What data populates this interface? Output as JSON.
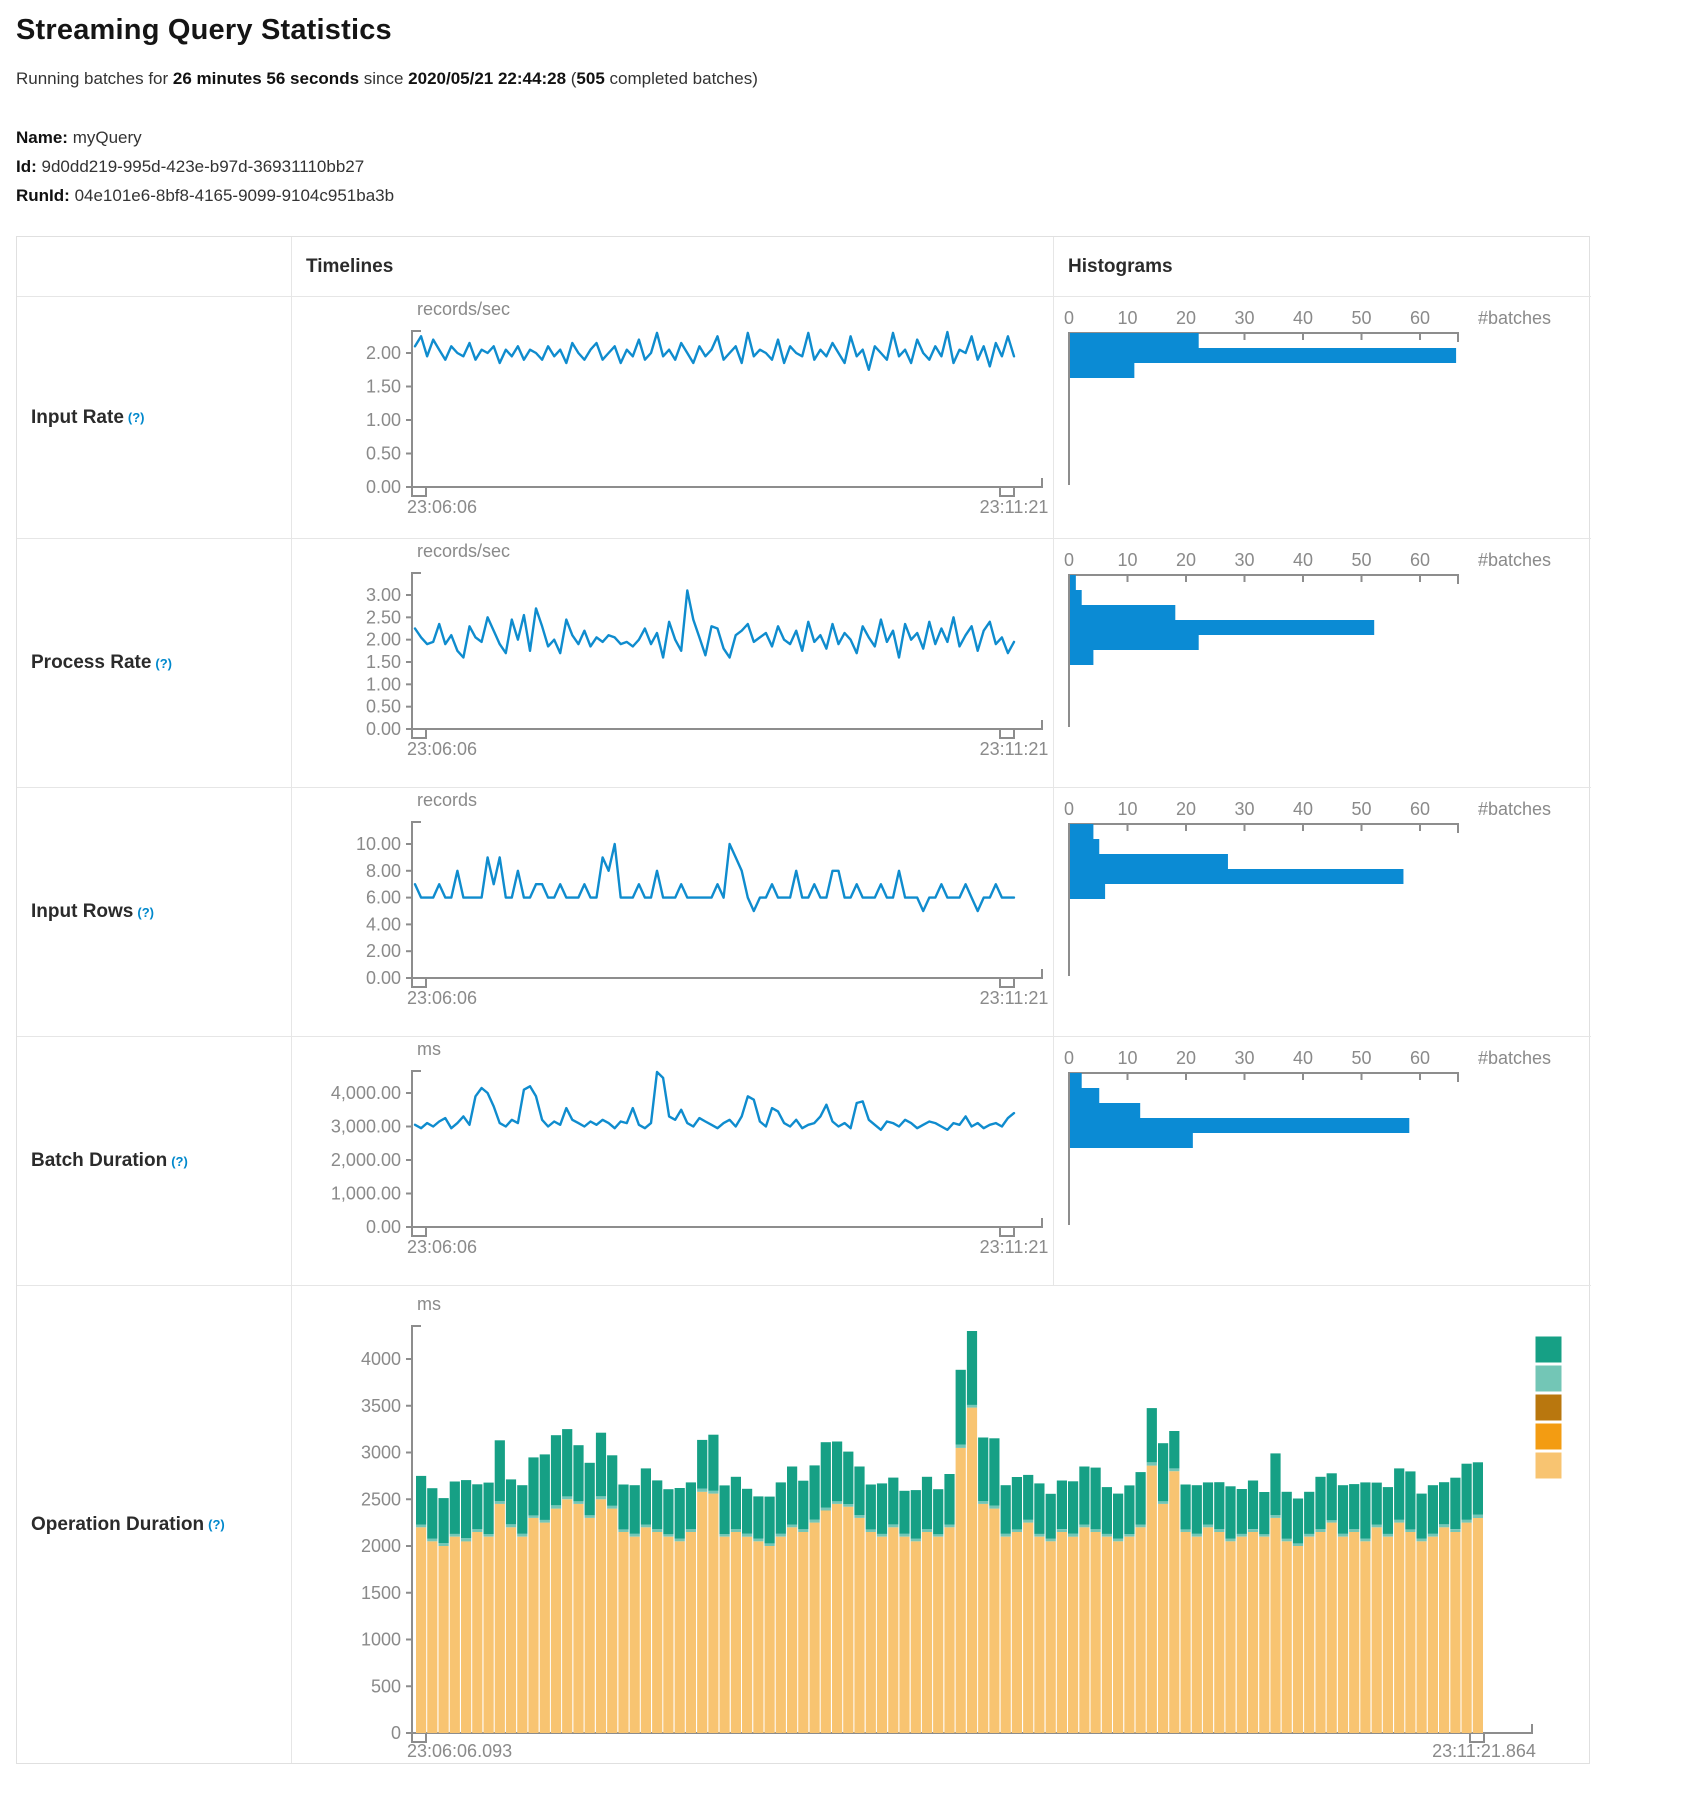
{
  "page": {
    "title": "Streaming Query Statistics",
    "subtitle": {
      "prefix": "Running batches for ",
      "duration": "26 minutes 56 seconds",
      "mid": " since ",
      "start_time": "2020/05/21 22:44:28",
      "paren_open": " (",
      "completed_batches": "505",
      "suffix": " completed batches)"
    },
    "meta": {
      "name_label": "Name:",
      "name_value": "myQuery",
      "id_label": "Id:",
      "id_value": "9d0dd219-995d-423e-b97d-36931110bb27",
      "runid_label": "RunId:",
      "runid_value": "04e101e6-8bf8-4165-9099-9104c951ba3b"
    }
  },
  "table": {
    "col_headers": [
      "Timelines",
      "Histograms"
    ],
    "help_mark": "(?)",
    "row_labels": [
      "Input Rate",
      "Process Rate",
      "Input Rows",
      "Batch Duration",
      "Operation Duration"
    ]
  },
  "colors": {
    "line_blue": "#0f8cce",
    "hist_blue": "#0b8bd4",
    "axis_gray": "#8d8d8d",
    "tick_text_gray": "#8a8a8a",
    "help_blue": "#0088cc",
    "legend": [
      "#16A085",
      "#73C6B6",
      "#B9770E",
      "#F39C12",
      "#F8C471"
    ],
    "stack_series_bottom_to_top": [
      "#F8C471",
      "#73C6B6",
      "#16A085"
    ]
  },
  "chart_data": {
    "timelines": [
      {
        "type": "line",
        "row": "Input Rate",
        "unit": "records/sec",
        "x_start": "23:06:06",
        "x_end": "23:11:21",
        "yticks": [
          {
            "v": 2,
            "label": "2.00"
          },
          {
            "v": 1.5,
            "label": "1.50"
          },
          {
            "v": 1,
            "label": "1.00"
          },
          {
            "v": 0.5,
            "label": "0.50"
          },
          {
            "v": 0,
            "label": "0.00"
          }
        ],
        "values": [
          2.1,
          2.25,
          1.95,
          2.2,
          2.05,
          1.9,
          2.1,
          2.0,
          1.95,
          2.15,
          1.9,
          2.05,
          2.0,
          2.1,
          1.85,
          2.05,
          1.95,
          2.1,
          1.9,
          2.05,
          2.0,
          1.9,
          2.1,
          1.95,
          2.05,
          1.85,
          2.15,
          2.0,
          1.9,
          2.05,
          2.15,
          1.9,
          2.0,
          2.1,
          1.85,
          2.05,
          1.95,
          2.2,
          1.9,
          2.0,
          2.3,
          1.95,
          2.05,
          1.9,
          2.15,
          2.0,
          1.85,
          2.1,
          1.95,
          2.05,
          2.25,
          1.9,
          2.0,
          2.1,
          1.85,
          2.3,
          1.95,
          2.05,
          2.0,
          1.9,
          2.2,
          1.85,
          2.1,
          2.0,
          1.95,
          2.3,
          1.9,
          2.05,
          1.95,
          2.15,
          2.0,
          1.85,
          2.25,
          1.95,
          2.05,
          1.75,
          2.1,
          2.0,
          1.9,
          2.3,
          1.95,
          2.05,
          1.85,
          2.2,
          2.0,
          1.9,
          2.1,
          1.95,
          2.35,
          1.85,
          2.05,
          2.0,
          2.25,
          1.9,
          2.1,
          1.8,
          2.15,
          1.95,
          2.25,
          1.95
        ]
      },
      {
        "type": "line",
        "row": "Process Rate",
        "unit": "records/sec",
        "x_start": "23:06:06",
        "x_end": "23:11:21",
        "yticks": [
          {
            "v": 3,
            "label": "3.00"
          },
          {
            "v": 2.5,
            "label": "2.50"
          },
          {
            "v": 2,
            "label": "2.00"
          },
          {
            "v": 1.5,
            "label": "1.50"
          },
          {
            "v": 1,
            "label": "1.00"
          },
          {
            "v": 0.5,
            "label": "0.50"
          },
          {
            "v": 0,
            "label": "0.00"
          }
        ],
        "values": [
          2.25,
          2.05,
          1.9,
          1.95,
          2.35,
          1.9,
          2.1,
          1.75,
          1.6,
          2.3,
          2.05,
          1.95,
          2.5,
          2.2,
          1.9,
          1.7,
          2.45,
          2.0,
          2.55,
          1.75,
          2.7,
          2.3,
          1.85,
          2.0,
          1.7,
          2.45,
          2.1,
          1.9,
          2.2,
          1.85,
          2.05,
          1.95,
          2.1,
          2.05,
          1.9,
          1.95,
          1.85,
          2.0,
          2.25,
          1.9,
          2.15,
          1.6,
          2.4,
          2.0,
          1.75,
          3.1,
          2.45,
          2.05,
          1.65,
          2.3,
          2.25,
          1.8,
          1.6,
          2.1,
          2.2,
          2.35,
          1.95,
          2.05,
          2.15,
          1.85,
          2.3,
          2.0,
          1.9,
          2.2,
          1.75,
          2.4,
          1.95,
          2.1,
          1.8,
          2.35,
          1.9,
          2.15,
          2.0,
          1.7,
          2.3,
          2.05,
          1.85,
          2.45,
          1.95,
          2.2,
          1.6,
          2.35,
          2.0,
          2.15,
          1.8,
          2.4,
          1.9,
          2.25,
          1.95,
          2.5,
          1.85,
          2.1,
          2.3,
          1.75,
          2.2,
          2.4,
          1.9,
          2.05,
          1.7,
          1.95
        ]
      },
      {
        "type": "line",
        "row": "Input Rows",
        "unit": "records",
        "x_start": "23:06:06",
        "x_end": "23:11:21",
        "yticks": [
          {
            "v": 10,
            "label": "10.00"
          },
          {
            "v": 8,
            "label": "8.00"
          },
          {
            "v": 6,
            "label": "6.00"
          },
          {
            "v": 4,
            "label": "4.00"
          },
          {
            "v": 2,
            "label": "2.00"
          },
          {
            "v": 0,
            "label": "0.00"
          }
        ],
        "values": [
          7,
          6,
          6,
          6,
          7,
          6,
          6,
          8,
          6,
          6,
          6,
          6,
          9,
          7,
          9,
          6,
          6,
          8,
          6,
          6,
          7,
          7,
          6,
          6,
          7,
          6,
          6,
          6,
          7,
          6,
          6,
          9,
          8,
          10,
          6,
          6,
          6,
          7,
          6,
          6,
          8,
          6,
          6,
          6,
          7,
          6,
          6,
          6,
          6,
          6,
          7,
          6,
          10,
          9,
          8,
          6,
          5,
          6,
          6,
          7,
          6,
          6,
          6,
          8,
          6,
          6,
          7,
          6,
          6,
          8,
          8,
          6,
          6,
          7,
          6,
          6,
          6,
          7,
          6,
          6,
          8,
          6,
          6,
          6,
          5,
          6,
          6,
          7,
          6,
          6,
          6,
          7,
          6,
          5,
          6,
          6,
          7,
          6,
          6,
          6
        ]
      },
      {
        "type": "line",
        "row": "Batch Duration",
        "unit": "ms",
        "x_start": "23:06:06",
        "x_end": "23:11:21",
        "yticks": [
          {
            "v": 4000,
            "label": "4,000.00"
          },
          {
            "v": 3000,
            "label": "3,000.00"
          },
          {
            "v": 2000,
            "label": "2,000.00"
          },
          {
            "v": 1000,
            "label": "1,000.00"
          },
          {
            "v": 0,
            "label": "0.00"
          }
        ],
        "values": [
          3050,
          2950,
          3100,
          3000,
          3150,
          3250,
          2950,
          3100,
          3300,
          3050,
          3900,
          4150,
          4000,
          3600,
          3100,
          3000,
          3200,
          3100,
          4100,
          4200,
          3900,
          3200,
          3000,
          3150,
          3050,
          3550,
          3200,
          3100,
          3000,
          3150,
          3050,
          3200,
          3100,
          2950,
          3150,
          3100,
          3550,
          3050,
          2950,
          3100,
          4700,
          4450,
          3300,
          3200,
          3500,
          3100,
          3000,
          3250,
          3150,
          3050,
          2950,
          3100,
          3200,
          3000,
          3300,
          3900,
          3800,
          3150,
          3000,
          3550,
          3450,
          3100,
          3000,
          3200,
          2950,
          3050,
          3100,
          3300,
          3650,
          3150,
          3000,
          3100,
          2950,
          3700,
          3750,
          3200,
          3050,
          2900,
          3150,
          3100,
          3000,
          3200,
          3100,
          2950,
          3050,
          3150,
          3100,
          3000,
          2900,
          3100,
          3050,
          3300,
          3000,
          3100,
          2950,
          3050,
          3100,
          3000,
          3250,
          3400
        ]
      }
    ],
    "histograms": [
      {
        "type": "bar",
        "row": "Input Rate",
        "axis_label": "#batches",
        "xticks": [
          0,
          10,
          20,
          30,
          40,
          50,
          60
        ],
        "bin_counts": [
          22,
          66,
          11
        ]
      },
      {
        "type": "bar",
        "row": "Process Rate",
        "axis_label": "#batches",
        "xticks": [
          0,
          10,
          20,
          30,
          40,
          50,
          60
        ],
        "bin_counts": [
          1,
          2,
          18,
          52,
          22,
          4
        ]
      },
      {
        "type": "bar",
        "row": "Input Rows",
        "axis_label": "#batches",
        "xticks": [
          0,
          10,
          20,
          30,
          40,
          50,
          60
        ],
        "bin_counts": [
          4,
          5,
          27,
          57,
          6
        ]
      },
      {
        "type": "bar",
        "row": "Batch Duration",
        "axis_label": "#batches",
        "xticks": [
          0,
          10,
          20,
          30,
          40,
          50,
          60
        ],
        "bin_counts": [
          2,
          5,
          12,
          58,
          21
        ]
      }
    ],
    "operation_duration": {
      "type": "stacked-bar",
      "row": "Operation Duration",
      "unit": "ms",
      "x_start": "23:06:06.093",
      "x_end": "23:11:21.864",
      "yticks": [
        {
          "v": 4000,
          "label": "4000"
        },
        {
          "v": 3500,
          "label": "3500"
        },
        {
          "v": 3000,
          "label": "3000"
        },
        {
          "v": 2500,
          "label": "2500"
        },
        {
          "v": 2000,
          "label": "2000"
        },
        {
          "v": 1500,
          "label": "1500"
        },
        {
          "v": 1000,
          "label": "1000"
        },
        {
          "v": 500,
          "label": "500"
        },
        {
          "v": 0,
          "label": "0"
        }
      ],
      "series_colors_bottom_to_top": [
        "#F8C471",
        "#73C6B6",
        "#16A085"
      ],
      "legend_colors_top_to_bottom": [
        "#16A085",
        "#73C6B6",
        "#B9770E",
        "#F39C12",
        "#F8C471"
      ],
      "bars": [
        [
          2200,
          30,
          520
        ],
        [
          2050,
          28,
          540
        ],
        [
          2000,
          32,
          480
        ],
        [
          2100,
          30,
          560
        ],
        [
          2050,
          35,
          620
        ],
        [
          2150,
          30,
          480
        ],
        [
          2100,
          28,
          550
        ],
        [
          2450,
          30,
          650
        ],
        [
          2200,
          32,
          480
        ],
        [
          2100,
          30,
          520
        ],
        [
          2300,
          28,
          620
        ],
        [
          2250,
          30,
          700
        ],
        [
          2400,
          35,
          750
        ],
        [
          2500,
          30,
          720
        ],
        [
          2450,
          28,
          600
        ],
        [
          2300,
          30,
          560
        ],
        [
          2500,
          32,
          680
        ],
        [
          2400,
          30,
          540
        ],
        [
          2150,
          28,
          480
        ],
        [
          2100,
          30,
          520
        ],
        [
          2200,
          30,
          600
        ],
        [
          2150,
          32,
          520
        ],
        [
          2100,
          28,
          480
        ],
        [
          2050,
          30,
          540
        ],
        [
          2150,
          30,
          500
        ],
        [
          2580,
          35,
          520
        ],
        [
          2560,
          30,
          600
        ],
        [
          2100,
          28,
          520
        ],
        [
          2150,
          30,
          560
        ],
        [
          2100,
          32,
          480
        ],
        [
          2050,
          30,
          450
        ],
        [
          2000,
          28,
          500
        ],
        [
          2100,
          30,
          550
        ],
        [
          2200,
          30,
          620
        ],
        [
          2150,
          28,
          520
        ],
        [
          2250,
          32,
          580
        ],
        [
          2380,
          30,
          700
        ],
        [
          2450,
          28,
          640
        ],
        [
          2420,
          30,
          560
        ],
        [
          2300,
          30,
          520
        ],
        [
          2150,
          28,
          480
        ],
        [
          2100,
          30,
          540
        ],
        [
          2200,
          32,
          500
        ],
        [
          2100,
          30,
          460
        ],
        [
          2050,
          28,
          520
        ],
        [
          2150,
          30,
          560
        ],
        [
          2100,
          28,
          480
        ],
        [
          2200,
          30,
          540
        ],
        [
          3050,
          35,
          800
        ],
        [
          3480,
          30,
          790
        ],
        [
          2450,
          30,
          680
        ],
        [
          2400,
          32,
          720
        ],
        [
          2100,
          30,
          520
        ],
        [
          2150,
          28,
          560
        ],
        [
          2250,
          30,
          480
        ],
        [
          2100,
          30,
          540
        ],
        [
          2050,
          28,
          480
        ],
        [
          2150,
          30,
          520
        ],
        [
          2100,
          32,
          560
        ],
        [
          2200,
          30,
          620
        ],
        [
          2150,
          28,
          660
        ],
        [
          2100,
          30,
          500
        ],
        [
          2050,
          30,
          480
        ],
        [
          2100,
          28,
          520
        ],
        [
          2200,
          30,
          560
        ],
        [
          2860,
          35,
          580
        ],
        [
          2450,
          30,
          620
        ],
        [
          2800,
          30,
          400
        ],
        [
          2150,
          28,
          480
        ],
        [
          2100,
          30,
          520
        ],
        [
          2200,
          30,
          450
        ],
        [
          2150,
          32,
          500
        ],
        [
          2050,
          28,
          560
        ],
        [
          2100,
          30,
          480
        ],
        [
          2150,
          30,
          520
        ],
        [
          2100,
          28,
          450
        ],
        [
          2300,
          30,
          660
        ],
        [
          2050,
          30,
          500
        ],
        [
          2000,
          28,
          480
        ],
        [
          2100,
          30,
          450
        ],
        [
          2150,
          30,
          560
        ],
        [
          2250,
          28,
          500
        ],
        [
          2100,
          30,
          520
        ],
        [
          2150,
          32,
          480
        ],
        [
          2050,
          30,
          600
        ],
        [
          2200,
          28,
          450
        ],
        [
          2100,
          30,
          500
        ],
        [
          2250,
          30,
          550
        ],
        [
          2150,
          28,
          620
        ],
        [
          2050,
          30,
          480
        ],
        [
          2100,
          30,
          520
        ],
        [
          2200,
          32,
          450
        ],
        [
          2150,
          30,
          550
        ],
        [
          2250,
          30,
          600
        ],
        [
          2300,
          35,
          560
        ]
      ]
    }
  }
}
